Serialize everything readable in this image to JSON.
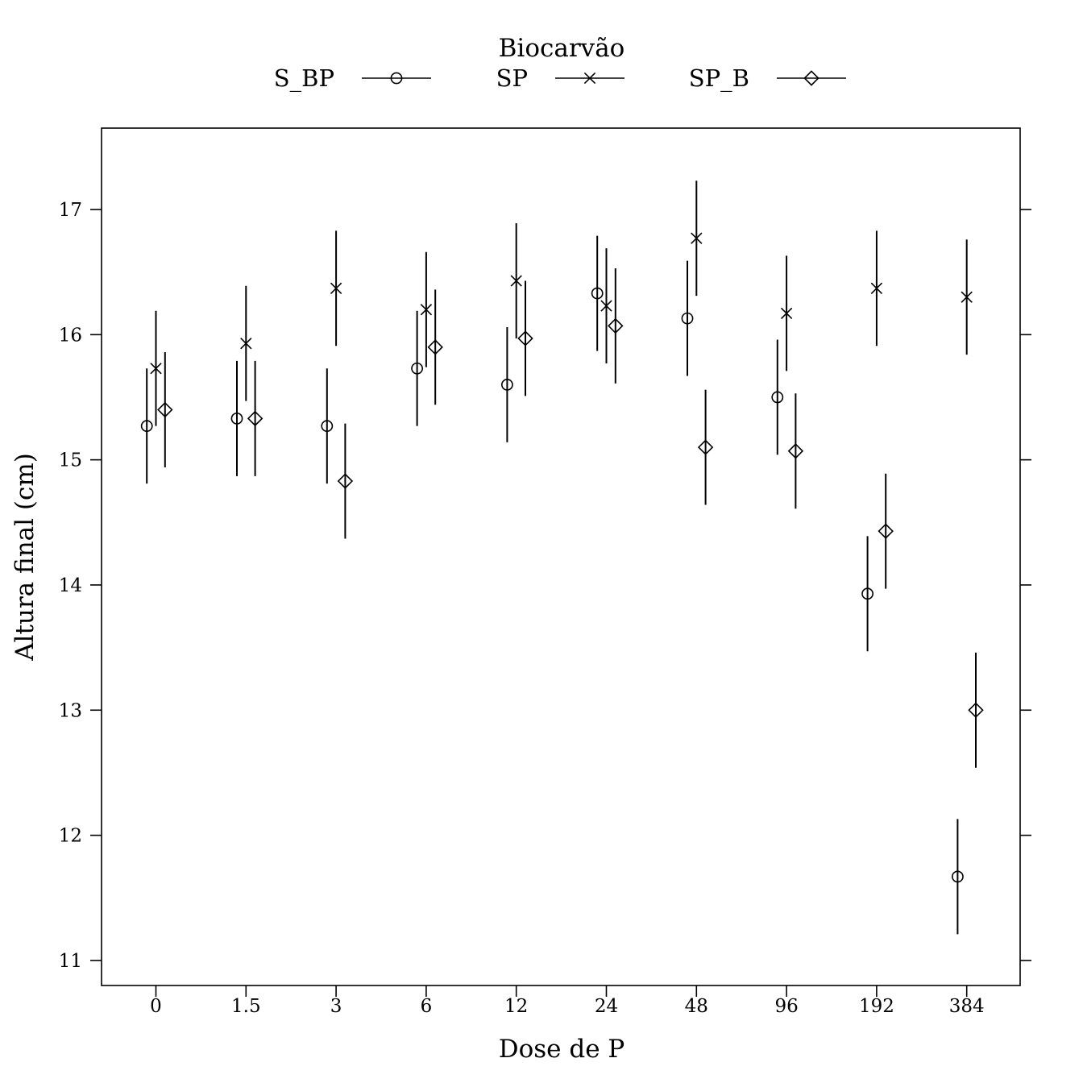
{
  "chart_data": {
    "type": "scatter",
    "subtype": "dot-plot with error bars",
    "xlabel": "Dose de P",
    "ylabel": "Altura final (cm)",
    "categories": [
      "0",
      "1.5",
      "3",
      "6",
      "12",
      "24",
      "48",
      "96",
      "192",
      "384"
    ],
    "ylim": [
      10.8,
      17.65
    ],
    "yticks": [
      11,
      12,
      13,
      14,
      15,
      16,
      17
    ],
    "grid": false,
    "legend": {
      "title": "Biocarvão",
      "position": "top",
      "entries": [
        "S_BP",
        "SP",
        "SP_B"
      ]
    },
    "series": [
      {
        "name": "S_BP",
        "marker": "circle",
        "values": [
          15.27,
          15.33,
          15.27,
          15.73,
          15.6,
          16.33,
          16.13,
          15.5,
          13.93,
          11.67
        ],
        "ci_half_width": 0.46
      },
      {
        "name": "SP",
        "marker": "x",
        "values": [
          15.73,
          15.93,
          16.37,
          16.2,
          16.43,
          16.23,
          16.77,
          16.17,
          16.37,
          16.3
        ],
        "ci_half_width": 0.46
      },
      {
        "name": "SP_B",
        "marker": "diamond",
        "values": [
          15.4,
          15.33,
          14.83,
          15.9,
          15.97,
          16.07,
          15.1,
          15.07,
          14.43,
          13.0
        ],
        "ci_half_width": 0.46
      }
    ],
    "colors": {
      "ink": "#000000",
      "background": "#ffffff"
    }
  }
}
